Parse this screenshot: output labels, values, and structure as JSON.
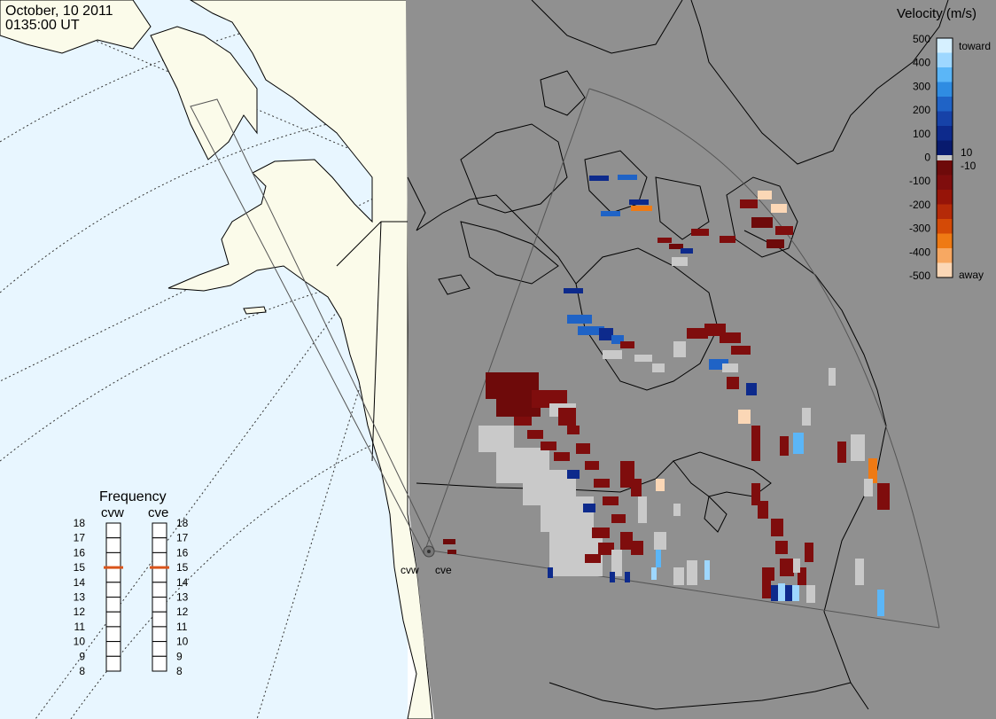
{
  "header": {
    "date": "October, 10 2011",
    "time": "0135:00 UT"
  },
  "legend": {
    "title": "Velocity (m/s)",
    "ticks": [
      "500",
      "400",
      "300",
      "200",
      "100",
      "0",
      "-100",
      "-200",
      "-300",
      "-400",
      "-500"
    ],
    "inner_pos": "10",
    "inner_neg": "-10",
    "toward_label": "toward",
    "away_label": "away",
    "colors": {
      "toward": [
        "#d6f0ff",
        "#9ed7ff",
        "#5bb6f7",
        "#2f8ce2",
        "#1f63c6",
        "#1642a8",
        "#0d2a8c",
        "#081a6e"
      ],
      "away": [
        "#6e0a0a",
        "#7f0d0d",
        "#961408",
        "#b52a08",
        "#d44a06",
        "#ef7a14",
        "#f7a862",
        "#fbd7b6"
      ],
      "small": "#c9c9c9"
    }
  },
  "radars": [
    {
      "code": "cvw",
      "name_label": "cvw",
      "frequency_mhz": 15
    },
    {
      "code": "cve",
      "name_label": "cve",
      "frequency_mhz": 15
    }
  ],
  "frequency_panel": {
    "title": "Frequency",
    "scale": [
      "18",
      "17",
      "16",
      "15",
      "14",
      "13",
      "12",
      "11",
      "10",
      "9",
      "8"
    ],
    "min": 8,
    "max": 18,
    "marker_color": "#d9541b"
  },
  "map": {
    "day_color": "#e8f6ff",
    "land_day_color": "#fbfbea",
    "night_color": "#909090",
    "coast_color": "#000000",
    "fov_color": "#555555"
  }
}
